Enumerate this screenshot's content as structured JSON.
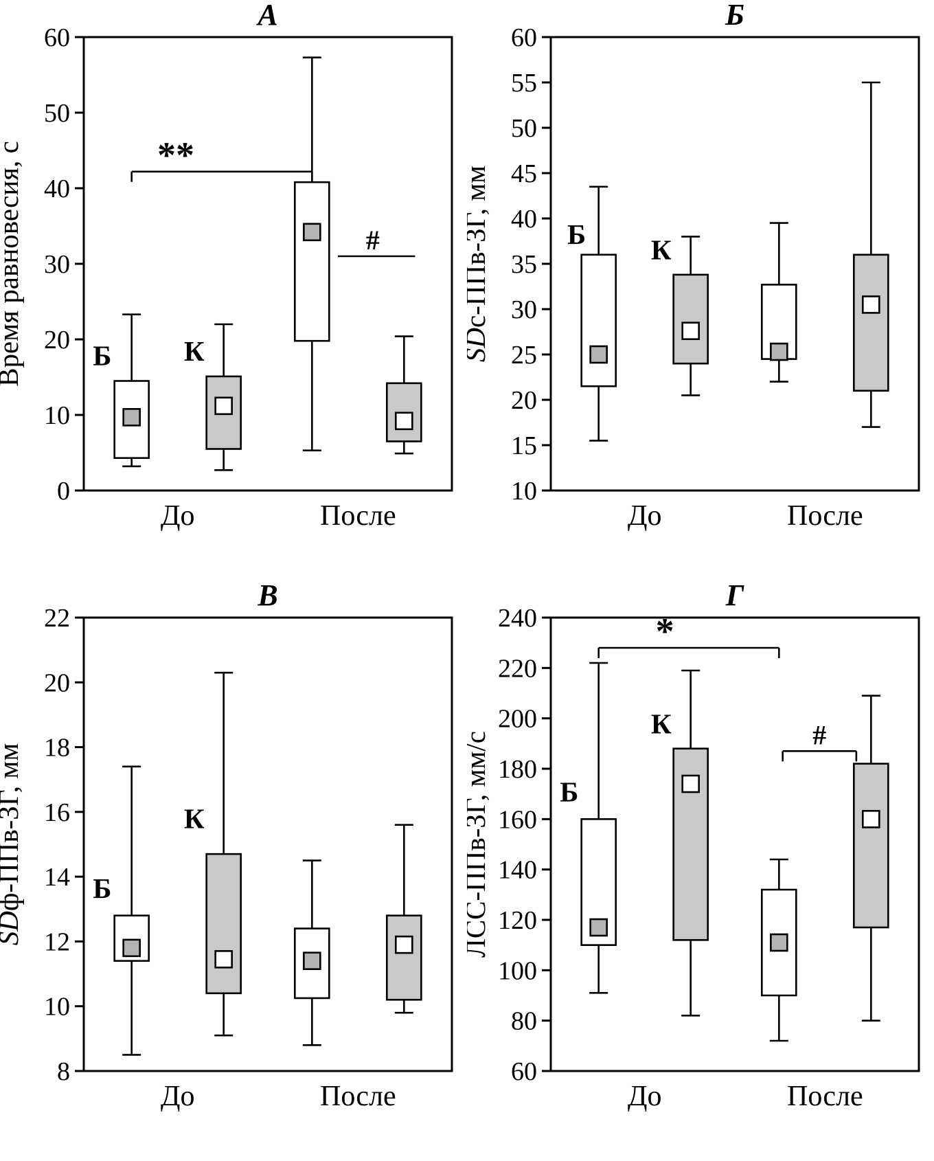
{
  "figure_title": "Box plot figure, four panels",
  "chart_data": {
    "type": "boxplot",
    "colors": {
      "box_gray": "#c9c9c9",
      "marker_gray": "#b3b3b3",
      "stroke": "#000000",
      "background": "#ffffff"
    },
    "panels": [
      {
        "id": "A",
        "title": "А",
        "ylabel": [
          {
            "t": "Время равновесия, с",
            "i": false
          }
        ],
        "ylim": [
          0,
          60
        ],
        "ytick_step": 10,
        "xticks": [
          {
            "label": "До",
            "x": 0.255
          },
          {
            "label": "После",
            "x": 0.745
          }
        ],
        "boxes": [
          {
            "group": "До",
            "series": "Б",
            "x": 0.13,
            "fill": "white",
            "low": 3.2,
            "q1": 4.3,
            "median": 9.7,
            "q3": 14.5,
            "high": 23.3
          },
          {
            "group": "До",
            "series": "К",
            "x": 0.38,
            "fill": "gray",
            "low": 2.7,
            "q1": 5.5,
            "median": 11.2,
            "q3": 15.1,
            "high": 22.0
          },
          {
            "group": "После",
            "series": "Б",
            "x": 0.62,
            "fill": "white",
            "low": 5.3,
            "q1": 19.8,
            "median": 34.2,
            "q3": 40.8,
            "high": 57.3
          },
          {
            "group": "После",
            "series": "К",
            "x": 0.87,
            "fill": "gray",
            "low": 4.9,
            "q1": 6.5,
            "median": 9.2,
            "q3": 14.2,
            "high": 20.4
          }
        ],
        "labels": [
          {
            "text": "Б",
            "x": 0.05,
            "y": 16.6
          },
          {
            "text": "К",
            "x": 0.3,
            "y": 17.2
          }
        ],
        "annotations": [
          {
            "text": "**",
            "x1": 0.13,
            "x2": 0.62,
            "y": 42.2,
            "ticks": true,
            "text_x": 0.25
          },
          {
            "text": "#",
            "x1": 0.69,
            "x2": 0.9,
            "y": 31.0,
            "ticks": false,
            "text_x": 0.785
          }
        ]
      },
      {
        "id": "B",
        "title": "Б",
        "ylabel": [
          {
            "t": "SD",
            "i": true
          },
          {
            "t": "с-ППв-ЗГ, мм",
            "i": false
          }
        ],
        "ylim": [
          10,
          60
        ],
        "ytick_step": 5,
        "xticks": [
          {
            "label": "До",
            "x": 0.255
          },
          {
            "label": "После",
            "x": 0.745
          }
        ],
        "boxes": [
          {
            "group": "До",
            "series": "Б",
            "x": 0.13,
            "fill": "white",
            "low": 15.5,
            "q1": 21.5,
            "median": 25.0,
            "q3": 36.0,
            "high": 43.5
          },
          {
            "group": "До",
            "series": "К",
            "x": 0.38,
            "fill": "gray",
            "low": 20.5,
            "q1": 24.0,
            "median": 27.6,
            "q3": 33.8,
            "high": 38.0
          },
          {
            "group": "После",
            "series": "Б",
            "x": 0.62,
            "fill": "white",
            "low": 22.0,
            "q1": 24.5,
            "median": 25.3,
            "q3": 32.7,
            "high": 39.5
          },
          {
            "group": "После",
            "series": "К",
            "x": 0.87,
            "fill": "gray",
            "low": 17.0,
            "q1": 21.0,
            "median": 30.5,
            "q3": 36.0,
            "high": 55.0
          }
        ],
        "labels": [
          {
            "text": "Б",
            "x": 0.07,
            "y": 37.2
          },
          {
            "text": "К",
            "x": 0.3,
            "y": 35.5
          }
        ],
        "annotations": []
      },
      {
        "id": "V",
        "title": "В",
        "ylabel": [
          {
            "t": "SD",
            "i": true
          },
          {
            "t": "ф-ППв-ЗГ, мм",
            "i": false
          }
        ],
        "ylim": [
          8,
          22
        ],
        "ytick_step": 2,
        "xticks": [
          {
            "label": "До",
            "x": 0.255
          },
          {
            "label": "После",
            "x": 0.745
          }
        ],
        "boxes": [
          {
            "group": "До",
            "series": "Б",
            "x": 0.13,
            "fill": "white",
            "low": 8.5,
            "q1": 11.4,
            "median": 11.8,
            "q3": 12.8,
            "high": 17.4
          },
          {
            "group": "До",
            "series": "К",
            "x": 0.38,
            "fill": "gray",
            "low": 9.1,
            "q1": 10.4,
            "median": 11.45,
            "q3": 14.7,
            "high": 20.3
          },
          {
            "group": "После",
            "series": "Б",
            "x": 0.62,
            "fill": "white",
            "low": 8.8,
            "q1": 10.25,
            "median": 11.4,
            "q3": 12.4,
            "high": 14.5
          },
          {
            "group": "После",
            "series": "К",
            "x": 0.87,
            "fill": "gray",
            "low": 9.8,
            "q1": 10.2,
            "median": 11.9,
            "q3": 12.8,
            "high": 15.6
          }
        ],
        "labels": [
          {
            "text": "Б",
            "x": 0.05,
            "y": 13.35
          },
          {
            "text": "К",
            "x": 0.3,
            "y": 15.5
          }
        ],
        "annotations": []
      },
      {
        "id": "G",
        "title": "Г",
        "ylabel": [
          {
            "t": "ЛСС-ППв-ЗГ, мм/с",
            "i": false
          }
        ],
        "ylim": [
          60,
          240
        ],
        "ytick_step": 20,
        "xticks": [
          {
            "label": "До",
            "x": 0.255
          },
          {
            "label": "После",
            "x": 0.745
          }
        ],
        "boxes": [
          {
            "group": "До",
            "series": "Б",
            "x": 0.13,
            "fill": "white",
            "low": 91,
            "q1": 110,
            "median": 117,
            "q3": 160,
            "high": 222
          },
          {
            "group": "До",
            "series": "К",
            "x": 0.38,
            "fill": "gray",
            "low": 82,
            "q1": 112,
            "median": 174,
            "q3": 188,
            "high": 219
          },
          {
            "group": "После",
            "series": "Б",
            "x": 0.62,
            "fill": "white",
            "low": 72,
            "q1": 90,
            "median": 111,
            "q3": 132,
            "high": 144
          },
          {
            "group": "После",
            "series": "К",
            "x": 0.87,
            "fill": "gray",
            "low": 80,
            "q1": 117,
            "median": 160,
            "q3": 182,
            "high": 209
          }
        ],
        "labels": [
          {
            "text": "Б",
            "x": 0.05,
            "y": 167
          },
          {
            "text": "К",
            "x": 0.3,
            "y": 194
          }
        ],
        "annotations": [
          {
            "text": "*",
            "x1": 0.13,
            "x2": 0.62,
            "y": 228,
            "ticks": true,
            "text_x": 0.31
          },
          {
            "text": "#",
            "x1": 0.63,
            "x2": 0.83,
            "y": 187,
            "ticks": true,
            "text_x": 0.73
          }
        ]
      }
    ]
  }
}
